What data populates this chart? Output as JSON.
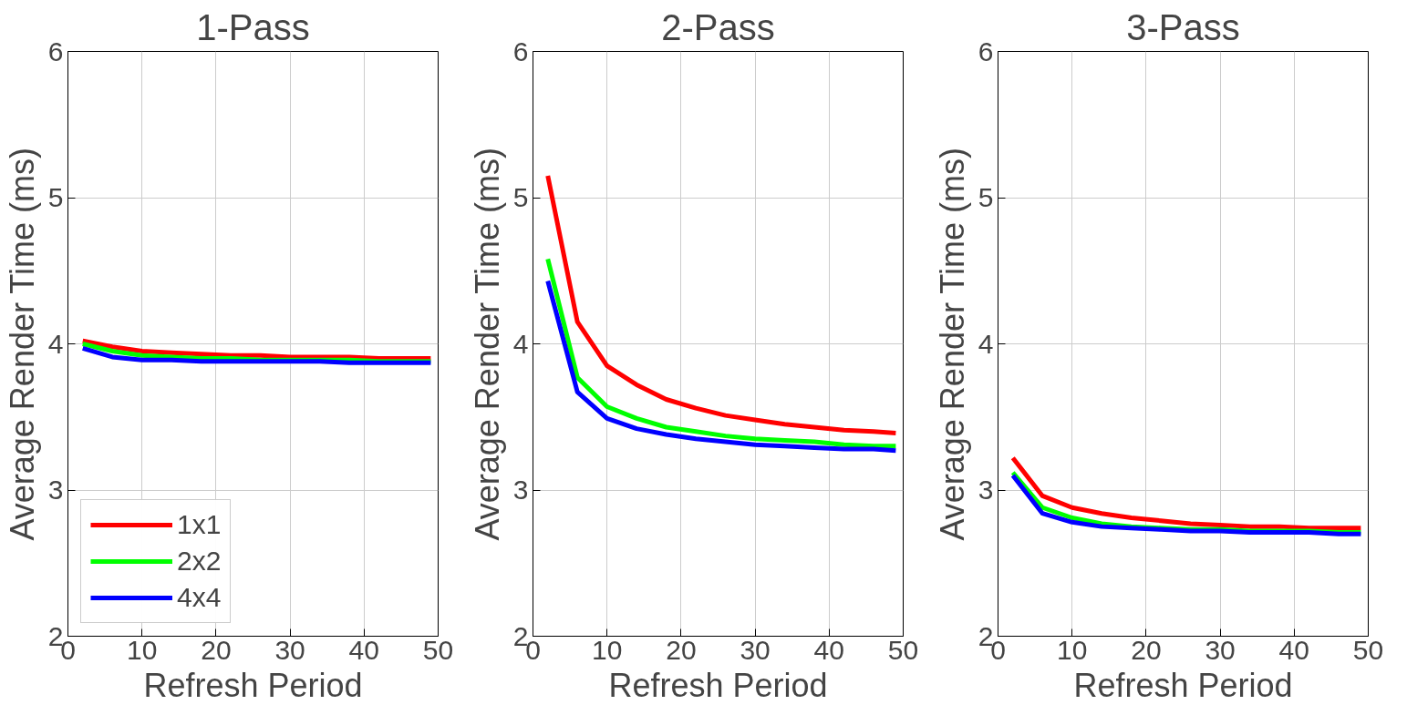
{
  "chart_data": [
    {
      "type": "line",
      "title": "1-Pass",
      "xlabel": "Refresh Period",
      "ylabel": "Average Render Time (ms)",
      "x": [
        2,
        6,
        10,
        14,
        18,
        22,
        26,
        30,
        34,
        38,
        42,
        46,
        49
      ],
      "xlim": [
        0,
        50
      ],
      "xticks": [
        0,
        10,
        20,
        30,
        40,
        50
      ],
      "ylim": [
        2,
        6
      ],
      "yticks": [
        2,
        3,
        4,
        5,
        6
      ],
      "grid": true,
      "legend": "bottom left",
      "marker": "none",
      "line_style": "solid",
      "series": [
        {
          "name": "1x1",
          "color": "#ff0000",
          "values": [
            4.02,
            3.98,
            3.95,
            3.94,
            3.93,
            3.92,
            3.92,
            3.91,
            3.91,
            3.91,
            3.9,
            3.9,
            3.9
          ]
        },
        {
          "name": "2x2",
          "color": "#00ff00",
          "values": [
            4.0,
            3.95,
            3.92,
            3.91,
            3.9,
            3.9,
            3.89,
            3.89,
            3.89,
            3.89,
            3.88,
            3.88,
            3.88
          ]
        },
        {
          "name": "4x4",
          "color": "#0000ff",
          "values": [
            3.97,
            3.91,
            3.89,
            3.89,
            3.88,
            3.88,
            3.88,
            3.88,
            3.88,
            3.87,
            3.87,
            3.87,
            3.87
          ]
        }
      ]
    },
    {
      "type": "line",
      "title": "2-Pass",
      "xlabel": "Refresh Period",
      "ylabel": "Average Render Time (ms)",
      "x": [
        2,
        6,
        10,
        14,
        18,
        22,
        26,
        30,
        34,
        38,
        42,
        46,
        49
      ],
      "xlim": [
        0,
        50
      ],
      "xticks": [
        0,
        10,
        20,
        30,
        40,
        50
      ],
      "ylim": [
        2,
        6
      ],
      "yticks": [
        2,
        3,
        4,
        5,
        6
      ],
      "grid": true,
      "marker": "none",
      "line_style": "solid",
      "series": [
        {
          "color": "#ff0000",
          "values": [
            5.15,
            4.15,
            3.85,
            3.72,
            3.62,
            3.56,
            3.51,
            3.48,
            3.45,
            3.43,
            3.41,
            3.4,
            3.39
          ]
        },
        {
          "color": "#00ff00",
          "values": [
            4.58,
            3.77,
            3.57,
            3.49,
            3.43,
            3.4,
            3.37,
            3.35,
            3.34,
            3.33,
            3.31,
            3.3,
            3.3
          ]
        },
        {
          "color": "#0000ff",
          "values": [
            4.43,
            3.67,
            3.49,
            3.42,
            3.38,
            3.35,
            3.33,
            3.31,
            3.3,
            3.29,
            3.28,
            3.28,
            3.27
          ]
        }
      ]
    },
    {
      "type": "line",
      "title": "3-Pass",
      "xlabel": "Refresh Period",
      "ylabel": "Average Render Time (ms)",
      "x": [
        2,
        6,
        10,
        14,
        18,
        22,
        26,
        30,
        34,
        38,
        42,
        46,
        49
      ],
      "xlim": [
        0,
        50
      ],
      "xticks": [
        0,
        10,
        20,
        30,
        40,
        50
      ],
      "ylim": [
        2,
        6
      ],
      "yticks": [
        2,
        3,
        4,
        5,
        6
      ],
      "grid": true,
      "marker": "none",
      "line_style": "solid",
      "series": [
        {
          "color": "#ff0000",
          "values": [
            3.22,
            2.96,
            2.88,
            2.84,
            2.81,
            2.79,
            2.77,
            2.76,
            2.75,
            2.75,
            2.74,
            2.74,
            2.74
          ]
        },
        {
          "color": "#00ff00",
          "values": [
            3.12,
            2.88,
            2.81,
            2.77,
            2.75,
            2.74,
            2.73,
            2.73,
            2.72,
            2.72,
            2.72,
            2.71,
            2.71
          ]
        },
        {
          "color": "#0000ff",
          "values": [
            3.1,
            2.84,
            2.78,
            2.75,
            2.74,
            2.73,
            2.72,
            2.72,
            2.71,
            2.71,
            2.71,
            2.7,
            2.7
          ]
        }
      ]
    }
  ]
}
